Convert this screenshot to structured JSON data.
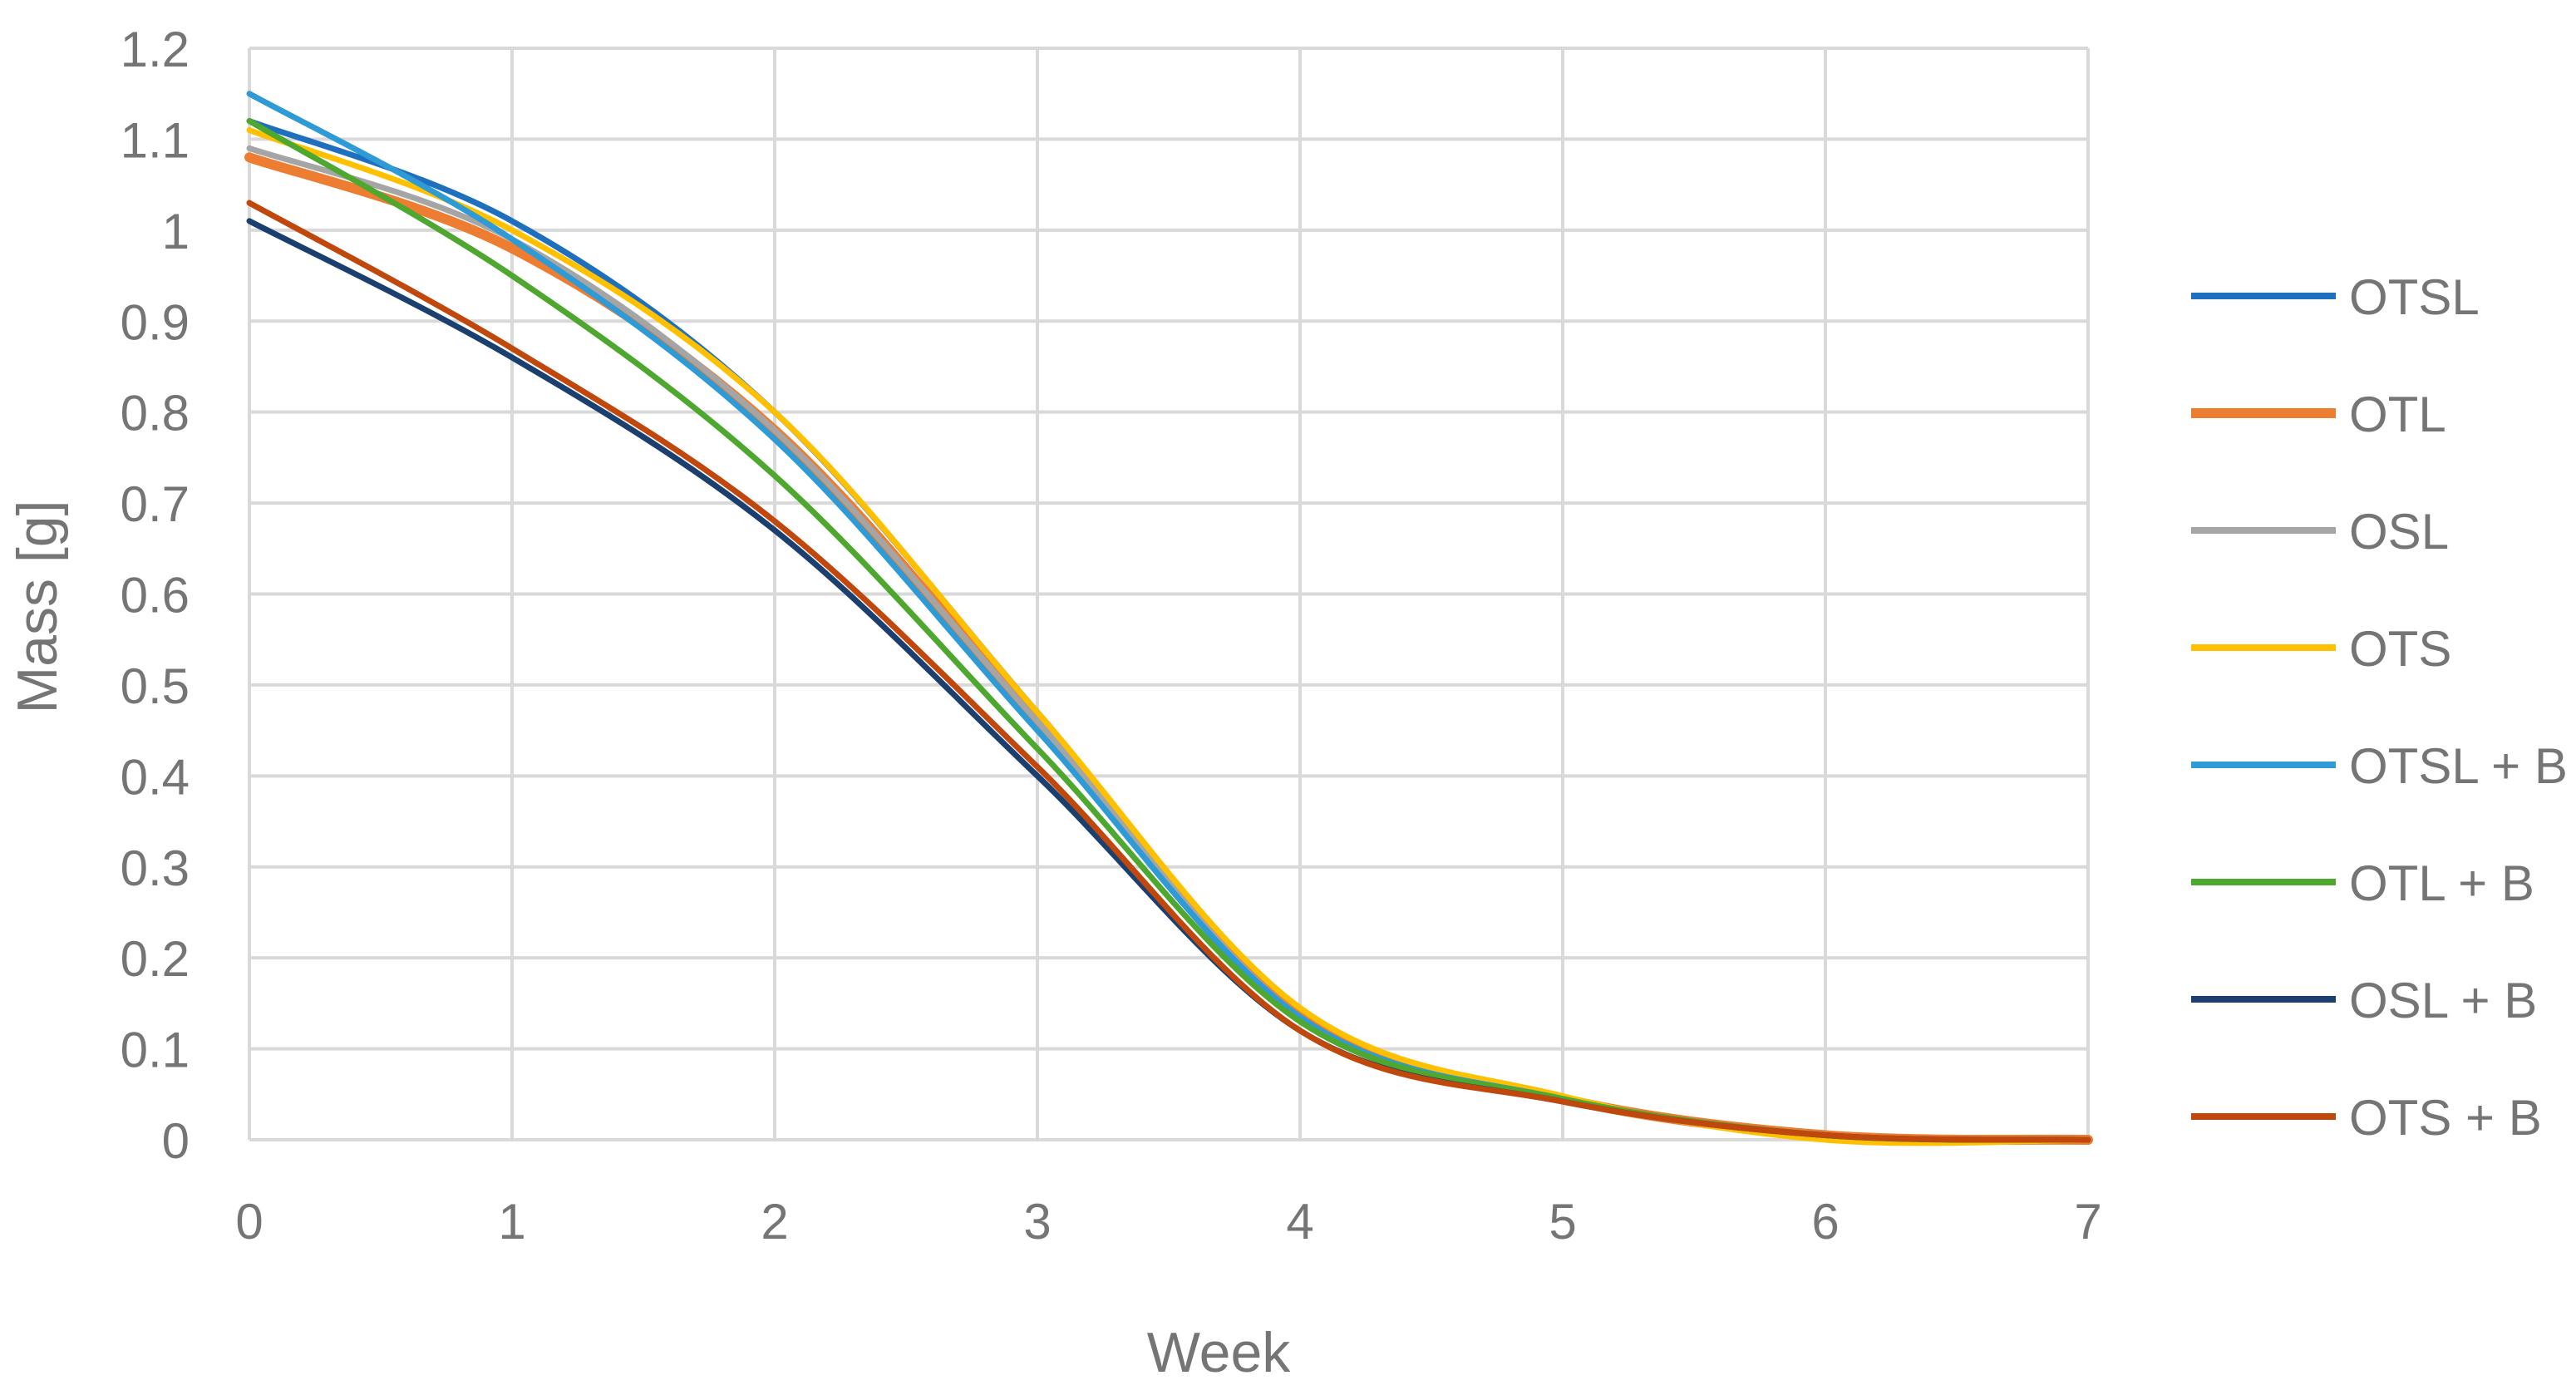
{
  "chart_data": {
    "type": "line",
    "title": "",
    "xlabel": "Week",
    "ylabel": "Mass [g]",
    "xlim": [
      0,
      7
    ],
    "ylim": [
      0,
      1.2
    ],
    "x_ticks": [
      "0",
      "1",
      "2",
      "3",
      "4",
      "5",
      "6",
      "7"
    ],
    "y_ticks": [
      "0",
      "0.1",
      "0.2",
      "0.3",
      "0.4",
      "0.5",
      "0.6",
      "0.7",
      "0.8",
      "0.9",
      "1",
      "1.1",
      "1.2"
    ],
    "grid": true,
    "legend_position": "right",
    "x": [
      0,
      1,
      2,
      3,
      4,
      5,
      6,
      7
    ],
    "series": [
      {
        "name": "OTSL",
        "color": "#1F6FBF",
        "values": [
          1.12,
          1.01,
          0.8,
          0.47,
          0.14,
          0.045,
          0.005,
          0.0
        ]
      },
      {
        "name": "OTL",
        "color": "#ED7D31",
        "values": [
          1.08,
          0.98,
          0.78,
          0.46,
          0.135,
          0.045,
          0.005,
          0.0
        ]
      },
      {
        "name": "OSL",
        "color": "#A5A5A5",
        "values": [
          1.09,
          0.99,
          0.78,
          0.46,
          0.135,
          0.045,
          0.005,
          0.0
        ]
      },
      {
        "name": "OTS",
        "color": "#FFC000",
        "values": [
          1.11,
          1.0,
          0.8,
          0.47,
          0.145,
          0.048,
          0.0,
          0.0
        ]
      },
      {
        "name": "OTSL + B",
        "color": "#2E9BD6",
        "values": [
          1.15,
          0.99,
          0.77,
          0.45,
          0.135,
          0.045,
          0.005,
          0.0
        ]
      },
      {
        "name": "OTL + B",
        "color": "#4EA72E",
        "values": [
          1.12,
          0.95,
          0.73,
          0.43,
          0.13,
          0.045,
          0.005,
          0.0
        ]
      },
      {
        "name": "OSL + B",
        "color": "#1B3F6E",
        "values": [
          1.01,
          0.86,
          0.67,
          0.4,
          0.12,
          0.042,
          0.005,
          0.0
        ]
      },
      {
        "name": "OTS + B",
        "color": "#C0480C",
        "values": [
          1.03,
          0.87,
          0.68,
          0.41,
          0.12,
          0.042,
          0.005,
          0.0
        ]
      }
    ]
  }
}
